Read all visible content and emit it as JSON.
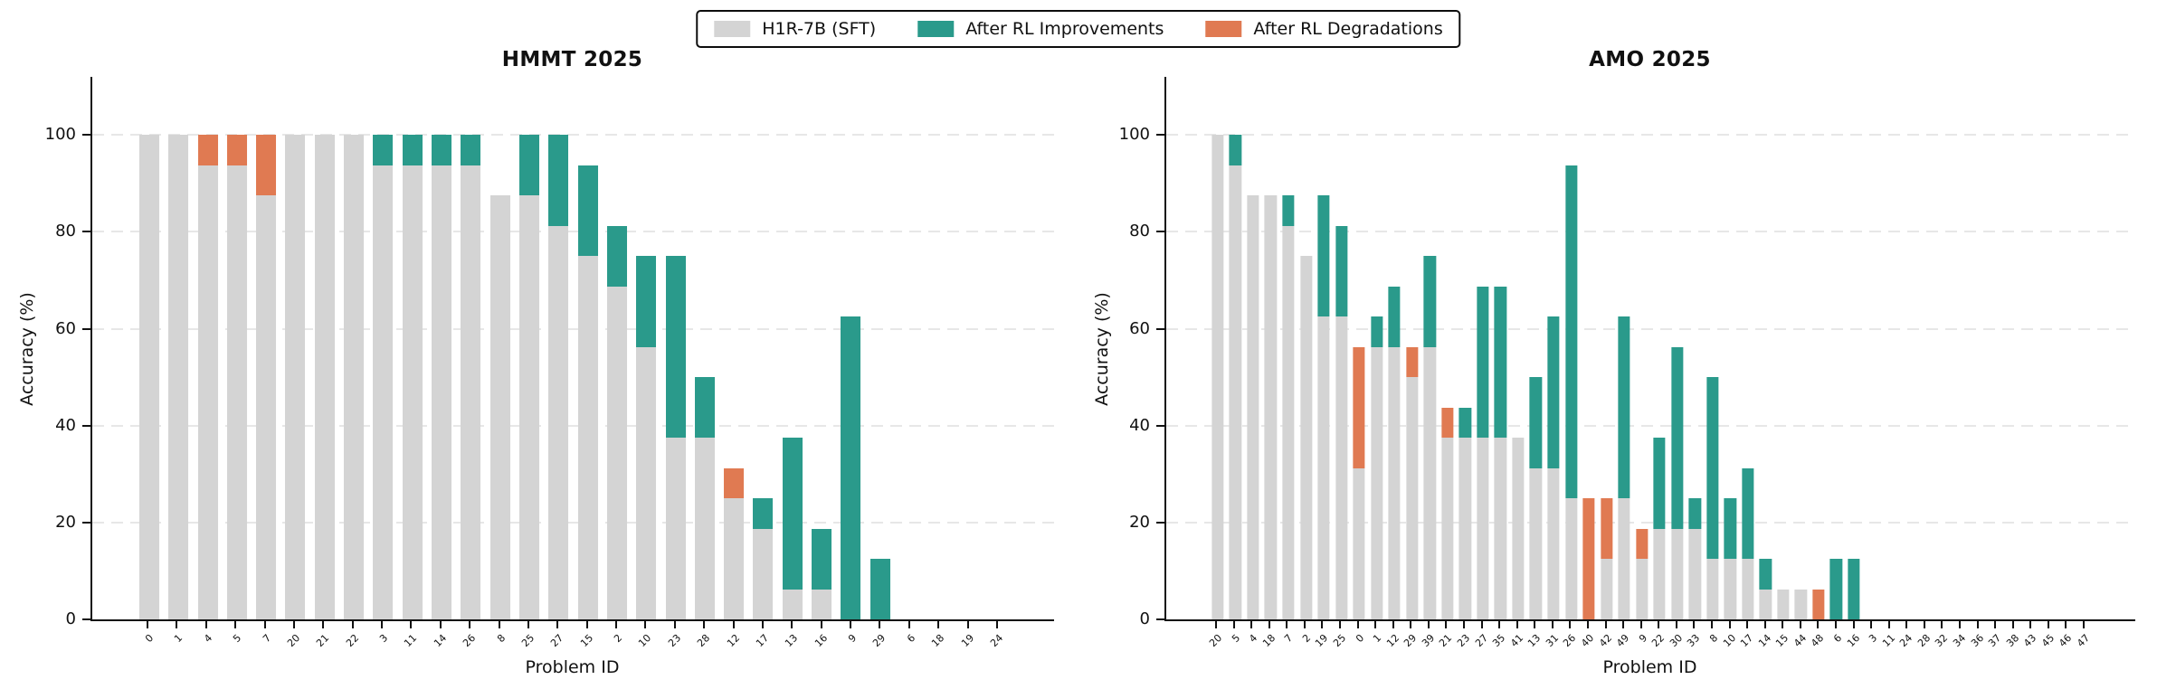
{
  "legend": {
    "items": [
      {
        "key": "sft",
        "label": "H1R-7B (SFT)",
        "color": "#d4d4d4"
      },
      {
        "key": "improvement",
        "label": "After RL Improvements",
        "color": "#2a9a8b"
      },
      {
        "key": "degradation",
        "label": "After RL Degradations",
        "color": "#e07a52"
      }
    ]
  },
  "colors": {
    "sft": "#d4d4d4",
    "improvement": "#2a9a8b",
    "degradation": "#e07a52",
    "grid": "#e7e7e7",
    "spine": "#111111"
  },
  "axes": {
    "ylabel": "Accuracy (%)",
    "xlabel": "Problem ID",
    "yticks": [
      0,
      20,
      40,
      60,
      80,
      100
    ],
    "ymax_visual": 112
  },
  "chart_data": [
    {
      "type": "bar",
      "subtype": "stacked-diff",
      "title": "HMMT 2025",
      "xlabel": "Problem ID",
      "ylabel": "Accuracy (%)",
      "ylim": [
        0,
        100
      ],
      "grid": "horizontal-dashed",
      "legend_position": "figure-top-center",
      "categories": [
        "0",
        "1",
        "4",
        "5",
        "7",
        "20",
        "21",
        "22",
        "3",
        "11",
        "14",
        "26",
        "8",
        "25",
        "27",
        "15",
        "2",
        "10",
        "23",
        "28",
        "12",
        "17",
        "13",
        "16",
        "9",
        "29",
        "6",
        "18",
        "19",
        "24"
      ],
      "series": [
        {
          "name": "H1R-7B (SFT)",
          "values": [
            100,
            100,
            100,
            100,
            100,
            100,
            100,
            100,
            93.75,
            93.75,
            93.75,
            93.75,
            87.5,
            87.5,
            81.25,
            75,
            68.75,
            56.25,
            37.5,
            37.5,
            31.25,
            18.75,
            6.25,
            6.25,
            0,
            0,
            0,
            0,
            0,
            0
          ]
        },
        {
          "name": "After RL",
          "values": [
            100,
            100,
            93.75,
            93.75,
            87.5,
            100,
            100,
            100,
            100,
            100,
            100,
            100,
            87.5,
            100,
            100,
            93.75,
            81.25,
            75,
            75,
            50,
            25,
            25,
            37.5,
            18.75,
            62.5,
            12.5,
            0,
            0,
            0,
            0
          ]
        }
      ]
    },
    {
      "type": "bar",
      "subtype": "stacked-diff",
      "title": "AMO 2025",
      "xlabel": "Problem ID",
      "ylabel": "Accuracy (%)",
      "ylim": [
        0,
        100
      ],
      "grid": "horizontal-dashed",
      "legend_position": "figure-top-center",
      "categories": [
        "20",
        "5",
        "4",
        "18",
        "7",
        "2",
        "19",
        "25",
        "0",
        "1",
        "12",
        "29",
        "39",
        "21",
        "23",
        "27",
        "35",
        "41",
        "13",
        "31",
        "26",
        "40",
        "42",
        "49",
        "9",
        "22",
        "30",
        "33",
        "8",
        "10",
        "17",
        "14",
        "15",
        "44",
        "48",
        "6",
        "16",
        "3",
        "11",
        "24",
        "28",
        "32",
        "34",
        "36",
        "37",
        "38",
        "43",
        "45",
        "46",
        "47"
      ],
      "series": [
        {
          "name": "H1R-7B (SFT)",
          "values": [
            100,
            93.75,
            87.5,
            87.5,
            81.25,
            75,
            62.5,
            62.5,
            56.25,
            56.25,
            56.25,
            56.25,
            56.25,
            43.75,
            37.5,
            37.5,
            37.5,
            37.5,
            31.25,
            31.25,
            25,
            25,
            25,
            25,
            18.75,
            18.75,
            18.75,
            18.75,
            12.5,
            12.5,
            12.5,
            6.25,
            6.25,
            6.25,
            6.25,
            0,
            0,
            0,
            0,
            0,
            0,
            0,
            0,
            0,
            0,
            0,
            0,
            0,
            0,
            0
          ]
        },
        {
          "name": "After RL",
          "values": [
            100,
            100,
            87.5,
            87.5,
            87.5,
            75,
            87.5,
            81.25,
            31.25,
            62.5,
            68.75,
            50,
            75,
            37.5,
            43.75,
            68.75,
            68.75,
            37.5,
            50,
            62.5,
            93.75,
            0,
            12.5,
            62.5,
            12.5,
            37.5,
            56.25,
            25,
            50,
            25,
            31.25,
            12.5,
            6.25,
            6.25,
            0,
            12.5,
            12.5,
            0,
            0,
            0,
            0,
            0,
            0,
            0,
            0,
            0,
            0,
            0,
            0,
            0
          ]
        }
      ]
    }
  ]
}
